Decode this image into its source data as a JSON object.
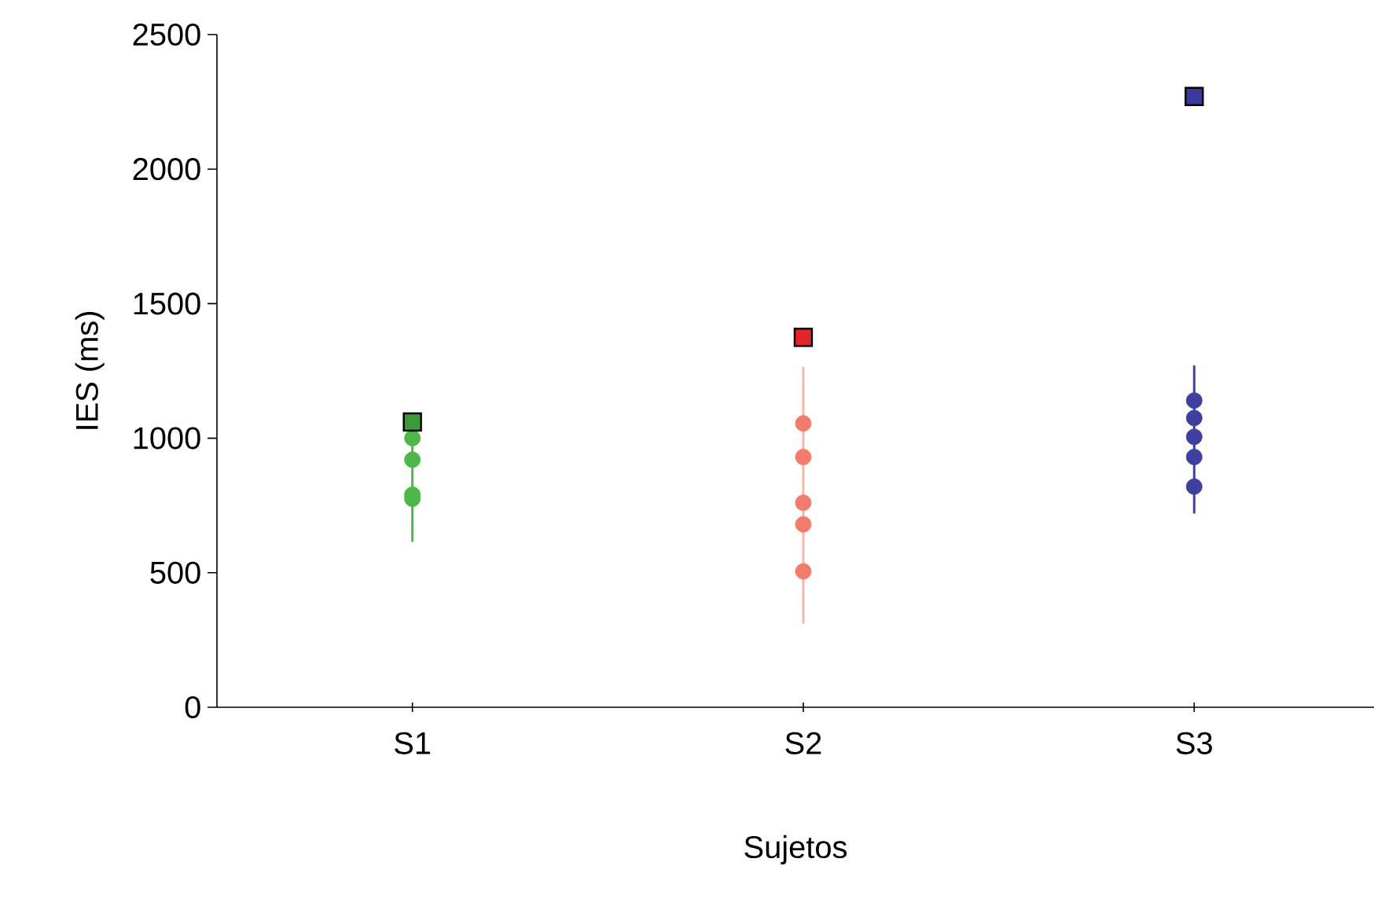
{
  "chart_data": {
    "type": "scatter",
    "xlabel": "Sujetos",
    "ylabel": "IES (ms)",
    "categories": [
      "S1",
      "S2",
      "S3"
    ],
    "ylim": [
      0,
      2500
    ],
    "yticks": [
      0,
      500,
      1000,
      1500,
      2000,
      2500
    ],
    "grid": false,
    "series": [
      {
        "type": "line",
        "marker": "none",
        "color": "#4db848",
        "x": [
          "S1",
          "S1"
        ],
        "values": [
          615,
          1060
        ]
      },
      {
        "marker": "circle",
        "color": "#4db848",
        "x": [
          "S1",
          "S1",
          "S1",
          "S1"
        ],
        "values": [
          1000,
          920,
          790,
          775
        ]
      },
      {
        "marker": "square",
        "color": "#3b9a38",
        "x": [
          "S1"
        ],
        "values": [
          1060
        ]
      },
      {
        "type": "line",
        "marker": "none",
        "color": "#f9b5aa",
        "x": [
          "S2",
          "S2"
        ],
        "values": [
          310,
          1265
        ]
      },
      {
        "marker": "circle",
        "color": "#f27c6c",
        "x": [
          "S2",
          "S2",
          "S2",
          "S2",
          "S2"
        ],
        "values": [
          1055,
          930,
          760,
          680,
          505
        ]
      },
      {
        "marker": "square",
        "color": "#e0262a",
        "x": [
          "S2"
        ],
        "values": [
          1375
        ]
      },
      {
        "type": "line",
        "marker": "none",
        "color": "#3f3f9f",
        "x": [
          "S3",
          "S3"
        ],
        "values": [
          720,
          1270
        ]
      },
      {
        "marker": "circle",
        "color": "#3f3f9f",
        "x": [
          "S3",
          "S3",
          "S3",
          "S3",
          "S3"
        ],
        "values": [
          1140,
          1075,
          1005,
          930,
          820
        ]
      },
      {
        "marker": "square",
        "color": "#3a3a9a",
        "x": [
          "S3"
        ],
        "values": [
          2270
        ]
      }
    ]
  }
}
